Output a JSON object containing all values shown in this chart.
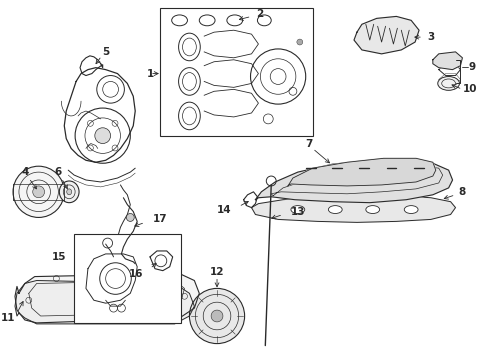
{
  "bg_color": "#ffffff",
  "line_color": "#2a2a2a",
  "label_color": "#000000",
  "fig_width": 4.9,
  "fig_height": 3.6,
  "dpi": 100
}
